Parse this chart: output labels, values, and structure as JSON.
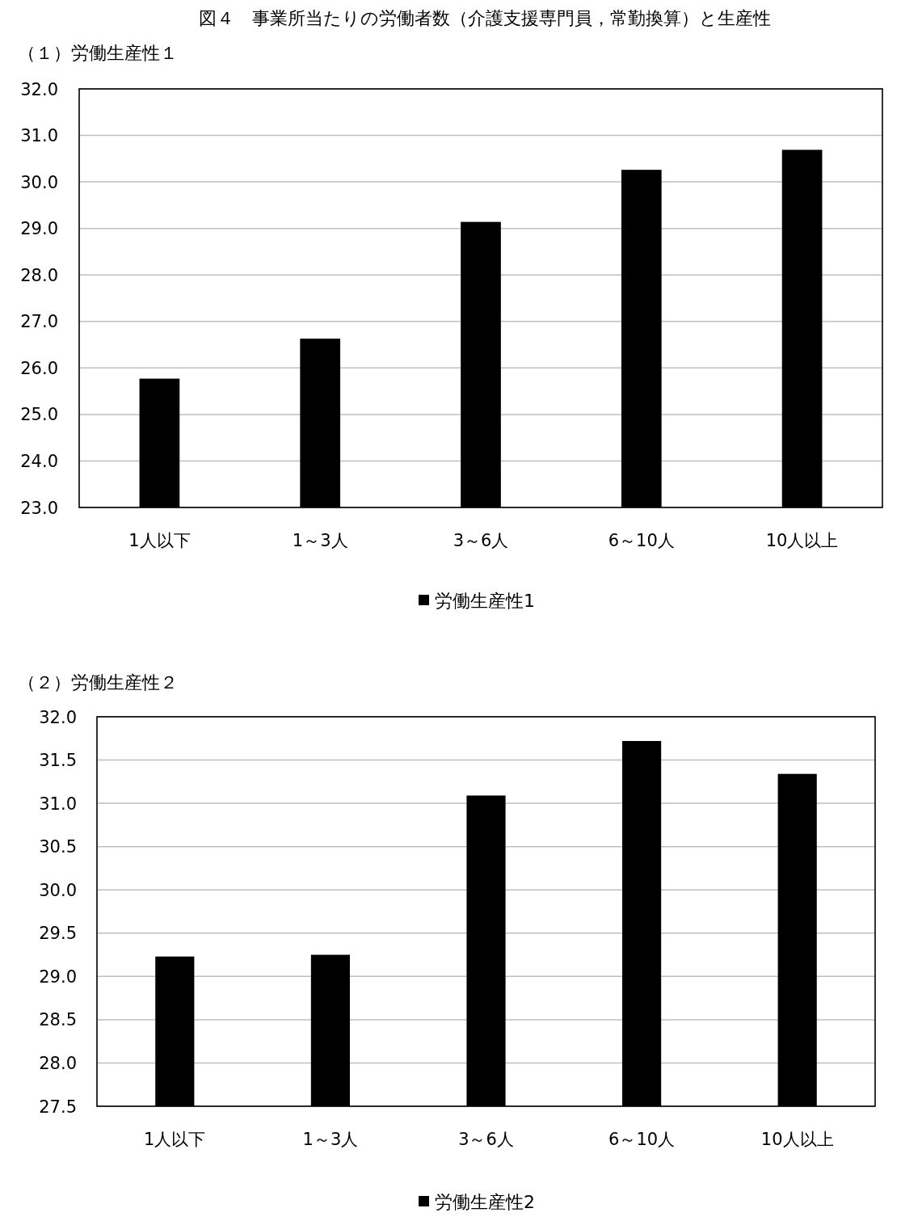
{
  "chart_data": [
    {
      "type": "bar",
      "title": "図４　事業所当たりの労働者数（介護支援専門員，常勤換算）と生産性",
      "subtitle": "（１）労働生産性１",
      "categories": [
        "1人以下",
        "1～3人",
        "3～6人",
        "6～10人",
        "10人以上"
      ],
      "series": [
        {
          "name": "労働生産性1",
          "color": "#000000",
          "values": [
            25.77,
            26.63,
            29.14,
            30.26,
            30.69
          ]
        }
      ],
      "ylim": [
        23,
        32
      ],
      "yticks": [
        {
          "value": 23,
          "label": "23.0"
        },
        {
          "value": 24,
          "label": "24.0"
        },
        {
          "value": 25,
          "label": "25.0"
        },
        {
          "value": 26,
          "label": "26.0"
        },
        {
          "value": 27,
          "label": "27.0"
        },
        {
          "value": 28,
          "label": "28.0"
        },
        {
          "value": 29,
          "label": "29.0"
        },
        {
          "value": 30,
          "label": "30.0"
        },
        {
          "value": 31,
          "label": "31.0"
        },
        {
          "value": 32,
          "label": "32.0"
        }
      ],
      "grid": "y",
      "legend": "bottom"
    },
    {
      "type": "bar",
      "subtitle": "（２）労働生産性２",
      "categories": [
        "1人以下",
        "1～3人",
        "3～6人",
        "6～10人",
        "10人以上"
      ],
      "series": [
        {
          "name": "労働生産性2",
          "color": "#000000",
          "values": [
            29.23,
            29.25,
            31.09,
            31.72,
            31.34
          ]
        }
      ],
      "ylim": [
        27.5,
        32
      ],
      "yticks": [
        27.5,
        {
          "value": 28,
          "label": "28.0"
        },
        28.5,
        {
          "value": 29,
          "label": "29.0"
        },
        29.5,
        {
          "value": 30,
          "label": "30.0"
        },
        30.5,
        {
          "value": 31,
          "label": "31.0"
        },
        31.5,
        {
          "value": 32,
          "label": "32.0"
        }
      ],
      "grid": "y",
      "legend": "bottom"
    }
  ]
}
